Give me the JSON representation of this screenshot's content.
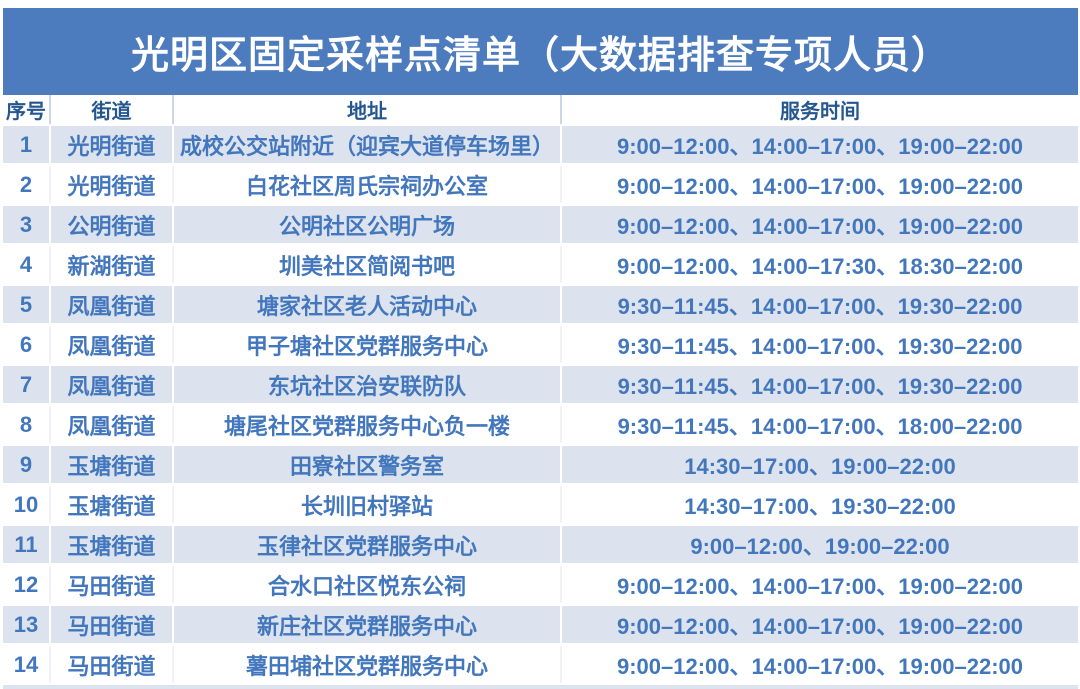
{
  "title": "光明区固定采样点清单（大数据排查专项人员）",
  "columns": [
    "序号",
    "街道",
    "地址",
    "服务时间"
  ],
  "colors": {
    "title_bar_bg": "#4d7cbe",
    "title_text": "#ffffff",
    "header_text": "#24578f",
    "row_text": "#4377bd",
    "shaded_row_bg": "#dce3ee",
    "plain_row_bg": "#ffffff"
  },
  "rows": [
    {
      "seq": "1",
      "street": "光明街道",
      "address": "成校公交站附近（迎宾大道停车场里）",
      "service_time": "9:00–12:00、14:00–17:00、19:00–22:00"
    },
    {
      "seq": "2",
      "street": "光明街道",
      "address": "白花社区周氏宗祠办公室",
      "service_time": "9:00–12:00、14:00–17:00、19:00–22:00"
    },
    {
      "seq": "3",
      "street": "公明街道",
      "address": "公明社区公明广场",
      "service_time": "9:00–12:00、14:00–17:00、19:00–22:00"
    },
    {
      "seq": "4",
      "street": "新湖街道",
      "address": "圳美社区简阅书吧",
      "service_time": "9:00–12:00、14:00–17:30、18:30–22:00"
    },
    {
      "seq": "5",
      "street": "凤凰街道",
      "address": "塘家社区老人活动中心",
      "service_time": "9:30–11:45、14:00–17:00、19:30–22:00"
    },
    {
      "seq": "6",
      "street": "凤凰街道",
      "address": "甲子塘社区党群服务中心",
      "service_time": "9:30–11:45、14:00–17:00、19:30–22:00"
    },
    {
      "seq": "7",
      "street": "凤凰街道",
      "address": "东坑社区治安联防队",
      "service_time": "9:30–11:45、14:00–17:00、19:30–22:00"
    },
    {
      "seq": "8",
      "street": "凤凰街道",
      "address": "塘尾社区党群服务中心负一楼",
      "service_time": "9:30–11:45、14:00–17:00、18:00–22:00"
    },
    {
      "seq": "9",
      "street": "玉塘街道",
      "address": "田寮社区警务室",
      "service_time": "14:30–17:00、19:00–22:00"
    },
    {
      "seq": "10",
      "street": "玉塘街道",
      "address": "长圳旧村驿站",
      "service_time": "14:30–17:00、19:30–22:00"
    },
    {
      "seq": "11",
      "street": "玉塘街道",
      "address": "玉律社区党群服务中心",
      "service_time": "9:00–12:00、19:00–22:00"
    },
    {
      "seq": "12",
      "street": "马田街道",
      "address": "合水口社区悦东公祠",
      "service_time": "9:00–12:00、14:00–17:00、19:00–22:00"
    },
    {
      "seq": "13",
      "street": "马田街道",
      "address": "新庄社区党群服务中心",
      "service_time": "9:00–12:00、14:00–17:00、19:00–22:00"
    },
    {
      "seq": "14",
      "street": "马田街道",
      "address": "薯田埔社区党群服务中心",
      "service_time": "9:00–12:00、14:00–17:00、19:00–22:00"
    }
  ]
}
